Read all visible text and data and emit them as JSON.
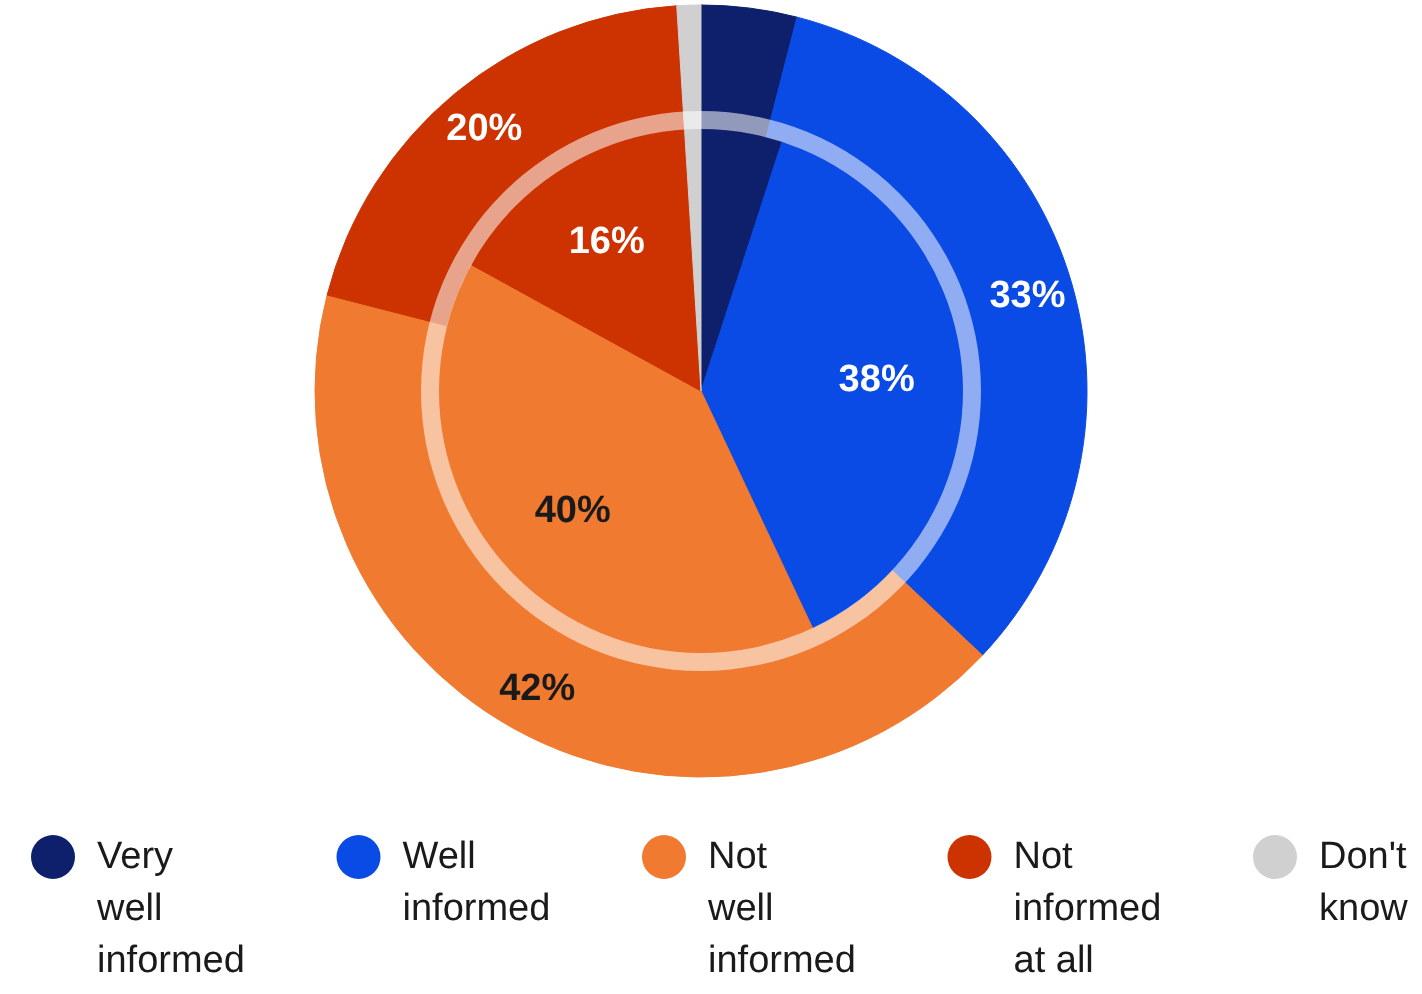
{
  "chart_data": {
    "type": "pie",
    "categories": [
      "Very well informed",
      "Well informed",
      "Not well informed",
      "Not informed at all",
      "Don't know"
    ],
    "colors": [
      "#0e1f6b",
      "#0a4be6",
      "#f07a30",
      "#cc3300",
      "#d0d0d0"
    ],
    "series": [
      {
        "values": [
          4,
          33,
          42,
          20,
          1
        ],
        "value_labels": [
          null,
          "33%",
          "42%",
          "20%",
          null
        ]
      },
      {
        "values": [
          5,
          38,
          40,
          16,
          1
        ],
        "value_labels": [
          null,
          "38%",
          "40%",
          "16%",
          null
        ]
      }
    ],
    "legend": "bottom"
  }
}
